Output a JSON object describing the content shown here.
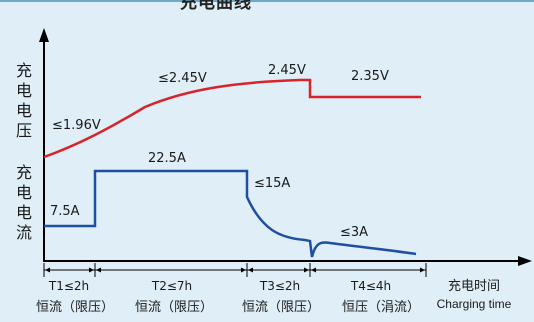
{
  "chart_data": {
    "type": "line",
    "title": "充电曲线",
    "x_axis_label": "充电时间",
    "x_axis_label_en": "Charging time",
    "y_axis_labels": [
      "充电电压",
      "充电电流"
    ],
    "series": [
      {
        "name": "充电电压",
        "color": "#d8232a",
        "stages": [
          {
            "stage": "T1",
            "annotation": "≤1.96V"
          },
          {
            "stage": "T2",
            "annotation": "≤2.45V"
          },
          {
            "stage": "T3",
            "annotation": "2.45V"
          },
          {
            "stage": "T4",
            "annotation": "2.35V"
          }
        ]
      },
      {
        "name": "充电电流",
        "color": "#1f4fa0",
        "stages": [
          {
            "stage": "T1",
            "annotation": "7.5A"
          },
          {
            "stage": "T2",
            "annotation": "22.5A"
          },
          {
            "stage": "T3",
            "annotation": "≤15A"
          },
          {
            "stage": "T4",
            "annotation": "≤3A"
          }
        ]
      }
    ],
    "phases": [
      {
        "time": "T1≤2h",
        "mode": "恒流（限压）"
      },
      {
        "time": "T2≤7h",
        "mode": "恒流（限压）"
      },
      {
        "time": "T3≤2h",
        "mode": "恒流（限压）"
      },
      {
        "time": "T4≤4h",
        "mode": "恒压（涓流）"
      }
    ],
    "grid": false,
    "legend": "none"
  }
}
